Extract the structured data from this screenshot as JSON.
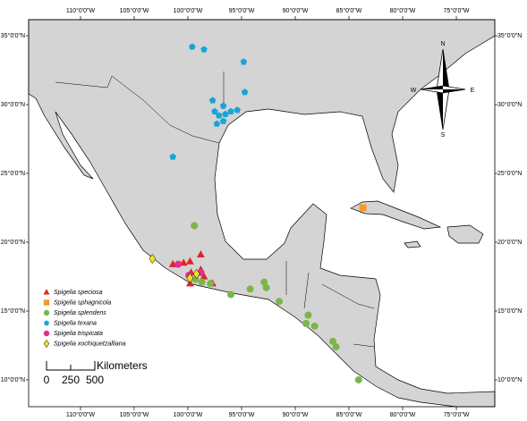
{
  "chart_data": {
    "type": "scatter",
    "xlim": [
      -114.83,
      -71.42
    ],
    "ylim": [
      8.05,
      36.17
    ],
    "xticks": [
      {
        "value": -110,
        "label": "110°0'0\"W"
      },
      {
        "value": -105,
        "label": "105°0'0\"W"
      },
      {
        "value": -100,
        "label": "100°0'0\"W"
      },
      {
        "value": -95,
        "label": "95°0'0\"W"
      },
      {
        "value": -90,
        "label": "90°0'0\"W"
      },
      {
        "value": -85,
        "label": "85°0'0\"W"
      },
      {
        "value": -80,
        "label": "80°0'0\"W"
      },
      {
        "value": -75,
        "label": "75°0'0\"W"
      }
    ],
    "yticks": [
      {
        "value": 10,
        "label": "10°0'0\"N"
      },
      {
        "value": 15,
        "label": "15°0'0\"N"
      },
      {
        "value": 20,
        "label": "20°0'0\"N"
      },
      {
        "value": 25,
        "label": "25°0'0\"N"
      },
      {
        "value": 30,
        "label": "30°0'0\"N"
      },
      {
        "value": 35,
        "label": "35°0'0\"N"
      }
    ],
    "series": [
      {
        "name": "Spigelia speciosa",
        "color": "#e0242b",
        "marker": "triangle",
        "x": [
          -101.4,
          -100.4,
          -99.8,
          -98.8,
          -99.7,
          -98.8,
          -98.5,
          -97.7,
          -99.8
        ],
        "y": [
          18.4,
          18.5,
          18.6,
          19.1,
          17.8,
          18.0,
          17.5,
          17.0,
          17.0
        ]
      },
      {
        "name": "Spigelia sphagnicola",
        "color": "#f39a2b",
        "marker": "square",
        "x": [
          -83.7
        ],
        "y": [
          22.5
        ]
      },
      {
        "name": "Spigelia splendens",
        "color": "#7ab648",
        "marker": "circle",
        "x": [
          -99.4,
          -99.3,
          -98.7,
          -97.9,
          -96.0,
          -94.2,
          -92.9,
          -92.7,
          -91.5,
          -88.8,
          -89.0,
          -88.2,
          -86.5,
          -86.2,
          -84.1
        ],
        "y": [
          21.2,
          17.3,
          17.1,
          17.0,
          16.2,
          16.6,
          17.1,
          16.7,
          15.7,
          14.7,
          14.1,
          13.9,
          12.8,
          12.4,
          10.0
        ]
      },
      {
        "name": "Spigelia texana",
        "color": "#1aa3d8",
        "marker": "pentagon",
        "x": [
          -99.6,
          -98.5,
          -94.8,
          -94.7,
          -97.7,
          -96.7,
          -97.5,
          -97.1,
          -96.5,
          -96.0,
          -95.4,
          -97.3,
          -96.7,
          -101.4
        ],
        "y": [
          34.2,
          34.0,
          33.1,
          30.9,
          30.3,
          29.9,
          29.5,
          29.2,
          29.3,
          29.5,
          29.6,
          28.6,
          28.8,
          26.2
        ]
      },
      {
        "name": "Spigelia trispicata",
        "color": "#e0318f",
        "marker": "circle",
        "x": [
          -100.9,
          -99.9,
          -98.8
        ],
        "y": [
          18.4,
          17.6,
          17.8
        ]
      },
      {
        "name": "Spigelia xochiquetzalliana",
        "color": "#f2e21c",
        "marker": "diamond",
        "x": [
          -103.3,
          -99.8,
          -99.2
        ],
        "y": [
          18.8,
          17.4,
          17.7
        ]
      }
    ]
  },
  "north_arrow": {
    "n": "N",
    "s": "S",
    "e": "E",
    "w": "W"
  },
  "scale_bar": {
    "label": "Kilometers",
    "ticks": [
      0,
      250,
      500
    ]
  }
}
